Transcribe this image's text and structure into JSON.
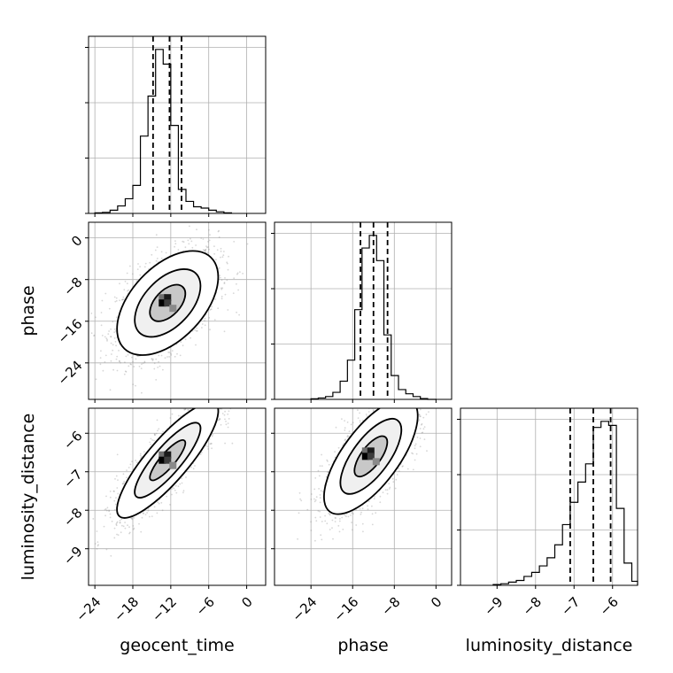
{
  "chart_data": {
    "type": "corner",
    "parameters": [
      "geocent_time",
      "phase",
      "luminosity_distance"
    ],
    "labels": {
      "x": [
        "geocent_time",
        "phase",
        "luminosity_distance"
      ],
      "y": [
        "",
        "phase",
        "luminosity_distance"
      ]
    },
    "ranges": {
      "geocent_time": [
        -25,
        3
      ],
      "phase": [
        -31,
        3
      ],
      "luminosity_distance": [
        -9.95,
        -5.35
      ]
    },
    "ticks": {
      "geocent_time": {
        "values": [
          -24,
          -18,
          -12,
          -6,
          0
        ],
        "labels": [
          "−24",
          "−18",
          "−12",
          "−6",
          "0"
        ]
      },
      "phase": {
        "values": [
          -24,
          -16,
          -8,
          0
        ],
        "labels": [
          "−24",
          "−16",
          "−8",
          "0"
        ]
      },
      "luminosity_distance": {
        "values": [
          -9,
          -8,
          -7,
          -6
        ],
        "labels": [
          "−9",
          "−8",
          "−7",
          "−6"
        ]
      }
    },
    "quantiles": {
      "geocent_time": [
        -14.8,
        -12.2,
        -10.3
      ],
      "phase": [
        -14.5,
        -12.0,
        -9.3
      ],
      "luminosity_distance": [
        -7.1,
        -6.5,
        -6.05
      ]
    },
    "histograms": {
      "geocent_time": {
        "bin_edges": [
          -24,
          -22.8,
          -21.6,
          -20.4,
          -19.2,
          -18,
          -16.8,
          -15.6,
          -14.4,
          -13.2,
          -12,
          -10.8,
          -9.6,
          -8.4,
          -7.2,
          -6,
          -4.8,
          -3.6,
          -2.4
        ],
        "counts": [
          2,
          4,
          12,
          28,
          55,
          105,
          290,
          440,
          615,
          560,
          330,
          90,
          45,
          25,
          20,
          12,
          6,
          2
        ]
      },
      "phase": {
        "bin_edges": [
          -24,
          -22.6,
          -21.2,
          -19.8,
          -18.4,
          -17,
          -15.6,
          -14.2,
          -12.8,
          -11.4,
          -10,
          -8.6,
          -7.2,
          -5.8,
          -4.4,
          -3,
          -1.6,
          0.1
        ],
        "counts": [
          2,
          5,
          10,
          25,
          65,
          140,
          320,
          540,
          585,
          495,
          230,
          85,
          35,
          20,
          10,
          3,
          0
        ]
      },
      "luminosity_distance": {
        "bin_edges": [
          -9.1,
          -8.9,
          -8.7,
          -8.5,
          -8.3,
          -8.1,
          -7.9,
          -7.7,
          -7.5,
          -7.3,
          -7.1,
          -6.9,
          -6.7,
          -6.5,
          -6.3,
          -6.1,
          -5.9,
          -5.7,
          -5.5,
          -5.35
        ],
        "counts": [
          2,
          4,
          8,
          12,
          22,
          32,
          48,
          68,
          100,
          150,
          205,
          255,
          300,
          390,
          405,
          395,
          190,
          55,
          10
        ]
      }
    },
    "joint_2d": [
      {
        "x": "geocent_time",
        "y": "phase",
        "mean": [
          -12.5,
          -12.5
        ],
        "sd": [
          4.0,
          5.0
        ],
        "corr": 0.5
      },
      {
        "x": "geocent_time",
        "y": "luminosity_distance",
        "mean": [
          -12.5,
          -6.7
        ],
        "sd": [
          4.0,
          0.75
        ],
        "corr": 0.85
      },
      {
        "x": "phase",
        "y": "luminosity_distance",
        "mean": [
          -12.5,
          -6.6
        ],
        "sd": [
          4.5,
          0.75
        ],
        "corr": 0.7
      }
    ],
    "grid": true
  }
}
